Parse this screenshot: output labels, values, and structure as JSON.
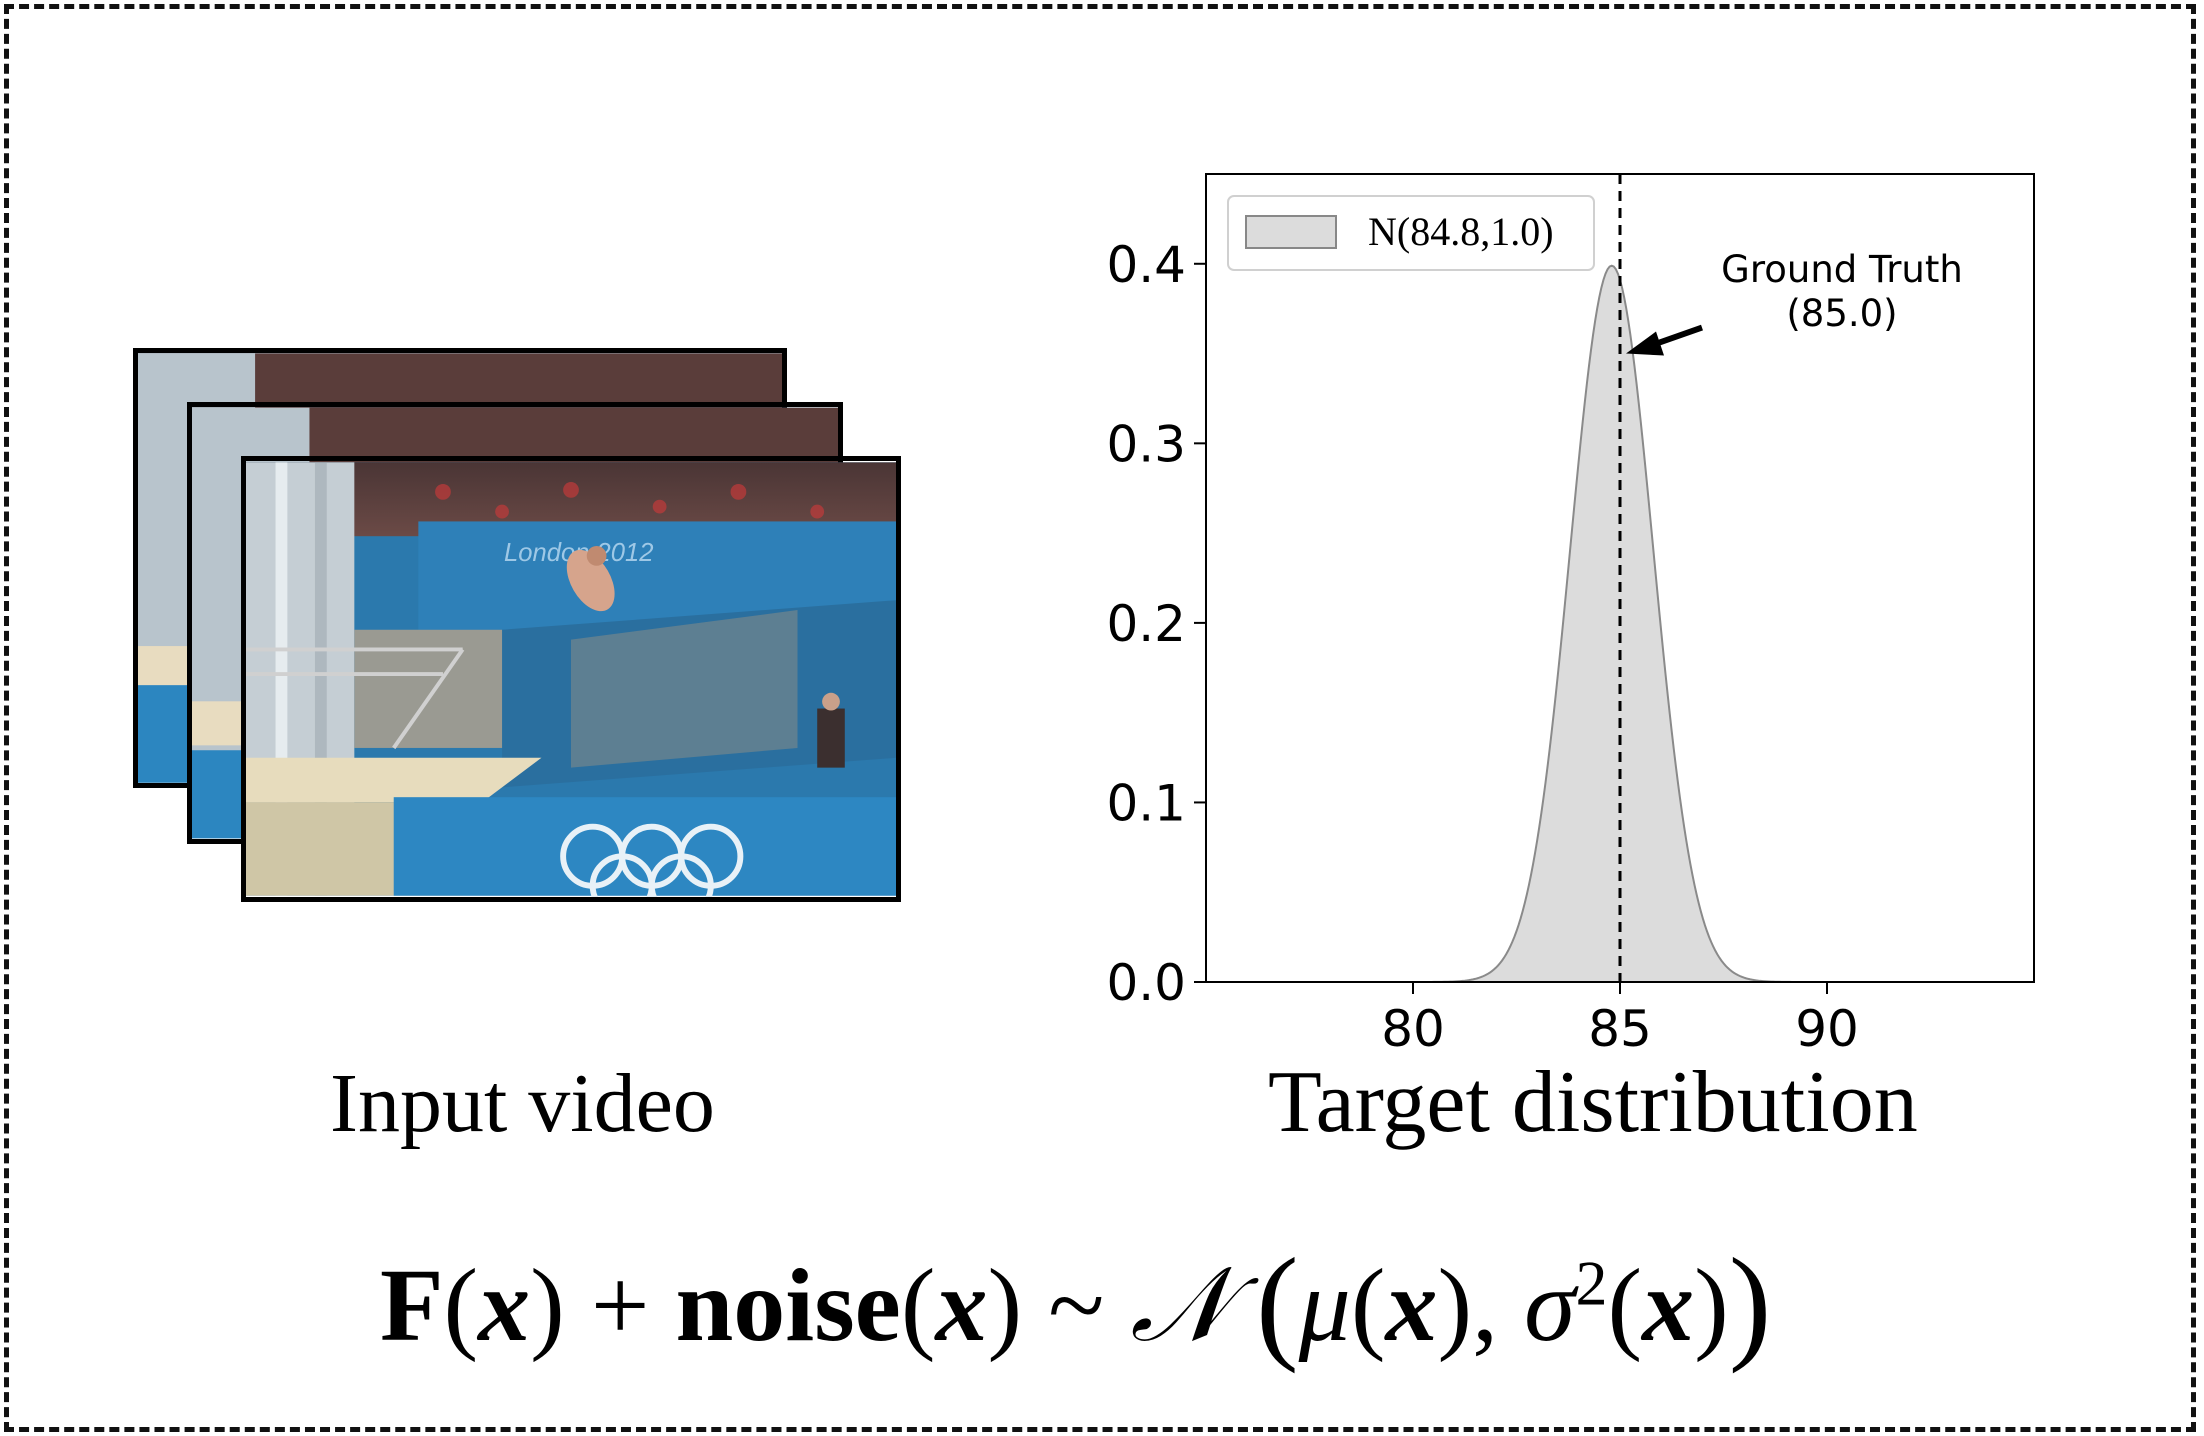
{
  "captions": {
    "input": "Input video",
    "target": "Target distribution"
  },
  "formula": {
    "F": "F",
    "x": "x",
    "plus": "+",
    "noise": "noise",
    "tilde": "~",
    "N": "𝒩",
    "mu": "μ",
    "sigma": "σ",
    "sq": "2"
  },
  "video": {
    "banner_text": "London 2012",
    "frame_count": 3,
    "icon": "diving-video-frames"
  },
  "chart_data": {
    "type": "area",
    "distribution": "normal",
    "mean": 84.8,
    "std": 1.0,
    "series": [
      {
        "name": "N(84.8,1.0)",
        "color": "#dcdcdc"
      }
    ],
    "xlim": [
      75,
      95
    ],
    "ylim": [
      0,
      0.45
    ],
    "xticks": [
      80,
      85,
      90
    ],
    "yticks": [
      0.0,
      0.1,
      0.2,
      0.3,
      0.4
    ],
    "xtick_labels": [
      "80",
      "85",
      "90"
    ],
    "ytick_labels": [
      "0.0",
      "0.1",
      "0.2",
      "0.3",
      "0.4"
    ],
    "ground_truth": 85.0,
    "annotation": {
      "line1": "Ground Truth",
      "line2": "(85.0)"
    },
    "legend_position": "upper-left",
    "title": "",
    "xlabel": "",
    "ylabel": ""
  }
}
